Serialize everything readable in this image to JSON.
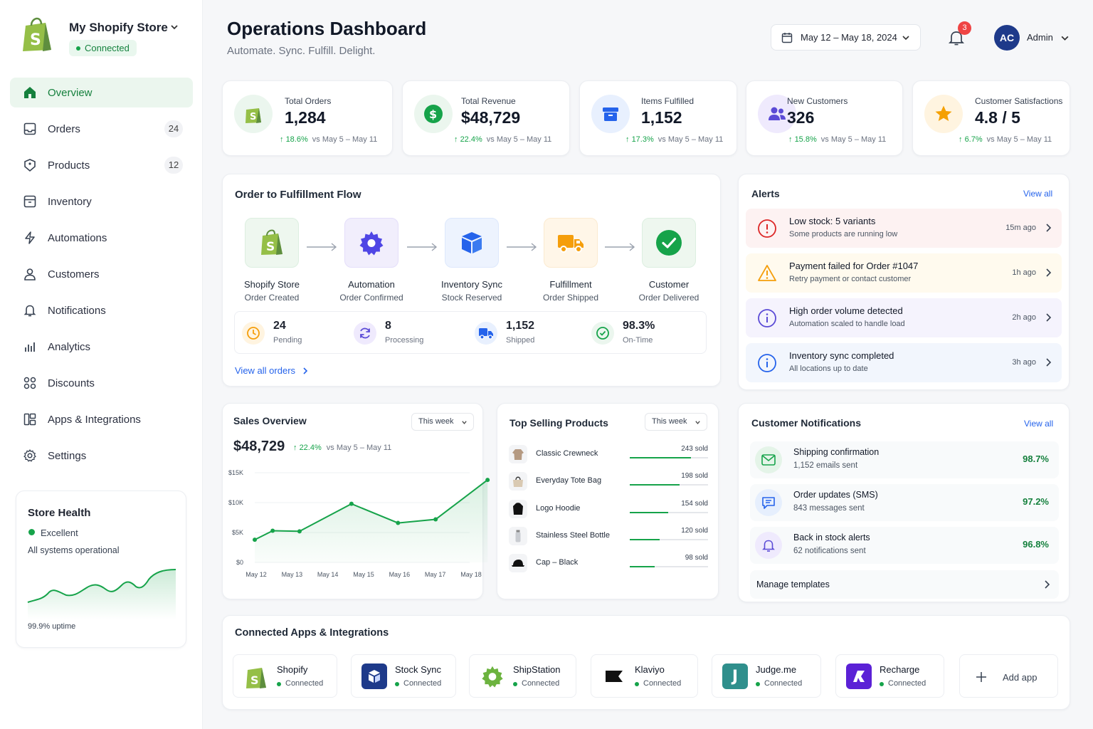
{
  "colors": {
    "accent": "#16a34a",
    "brand_green": "#95bf47",
    "link": "#2563eb",
    "alert_red": "#ef4444"
  },
  "store": {
    "name": "My Shopify Store",
    "status": "Connected"
  },
  "sidebar": {
    "items": [
      {
        "label": "Overview",
        "icon": "home-icon",
        "active": true
      },
      {
        "label": "Orders",
        "icon": "orders-icon",
        "badge": "24"
      },
      {
        "label": "Products",
        "icon": "tag-icon",
        "badge": "12"
      },
      {
        "label": "Inventory",
        "icon": "box-icon"
      },
      {
        "label": "Automations",
        "icon": "lightning-icon"
      },
      {
        "label": "Customers",
        "icon": "user-icon"
      },
      {
        "label": "Notifications",
        "icon": "bell-icon"
      },
      {
        "label": "Analytics",
        "icon": "bar-chart-icon"
      },
      {
        "label": "Discounts",
        "icon": "discount-icon"
      },
      {
        "label": "Apps & Integrations",
        "icon": "apps-icon"
      },
      {
        "label": "Settings",
        "icon": "gear-icon"
      }
    ]
  },
  "store_health": {
    "title": "Store Health",
    "status": "Excellent",
    "subtitle": "All systems operational",
    "uptime": "99.9% uptime"
  },
  "header": {
    "title": "Operations Dashboard",
    "subtitle": "Automate. Sync. Fulfill. Delight.",
    "date_range": "May 12 – May 18, 2024",
    "notification_count": "3",
    "avatar_initials": "AC",
    "user_label": "Admin"
  },
  "kpis": [
    {
      "label": "Total Orders",
      "value": "1,284",
      "change": "18.6%",
      "compare": "vs May 5 – May 11"
    },
    {
      "label": "Total Revenue",
      "value": "$48,729",
      "change": "22.4%",
      "compare": "vs May 5 – May 11"
    },
    {
      "label": "Items Fulfilled",
      "value": "1,152",
      "change": "17.3%",
      "compare": "vs May 5 – May 11"
    },
    {
      "label": "New Customers",
      "value": "326",
      "change": "15.8%",
      "compare": "vs May 5 – May 11"
    },
    {
      "label": "Customer Satisfactions",
      "value": "4.8 / 5",
      "change": "6.7%",
      "compare": "vs May 5 – May 11"
    }
  ],
  "flow": {
    "title": "Order to Fulfillment Flow",
    "steps": [
      {
        "name": "Shopify Store",
        "sub": "Order Created"
      },
      {
        "name": "Automation",
        "sub": "Order Confirmed"
      },
      {
        "name": "Inventory Sync",
        "sub": "Stock Reserved"
      },
      {
        "name": "Fulfillment",
        "sub": "Order Shipped"
      },
      {
        "name": "Customer",
        "sub": "Order Delivered"
      }
    ],
    "stats": [
      {
        "value": "24",
        "label": "Pending"
      },
      {
        "value": "8",
        "label": "Processing"
      },
      {
        "value": "1,152",
        "label": "Shipped"
      },
      {
        "value": "98.3%",
        "label": "On-Time"
      }
    ],
    "view_all": "View all orders"
  },
  "alerts": {
    "title": "Alerts",
    "view_all": "View all",
    "items": [
      {
        "title": "Low stock: 5 variants",
        "sub": "Some products are running low",
        "time": "15m ago",
        "level": "error"
      },
      {
        "title": "Payment failed for Order #1047",
        "sub": "Retry payment or contact customer",
        "time": "1h ago",
        "level": "warning"
      },
      {
        "title": "High order volume detected",
        "sub": "Automation scaled to handle load",
        "time": "2h ago",
        "level": "info-purple"
      },
      {
        "title": "Inventory sync completed",
        "sub": "All locations up to date",
        "time": "3h ago",
        "level": "info-blue"
      }
    ]
  },
  "sales": {
    "title": "Sales Overview",
    "period": "This week",
    "total": "$48,729",
    "change": "22.4%",
    "compare": "vs May 5 – May 11"
  },
  "chart_data": {
    "type": "area",
    "categories": [
      "May 12",
      "May 13",
      "May 14",
      "May 15",
      "May 16",
      "May 17",
      "May 18"
    ],
    "x": [
      0,
      0.5,
      1.25,
      2.7,
      4.0,
      5.05,
      6.5
    ],
    "values": [
      3800,
      5300,
      5200,
      9800,
      6600,
      7200,
      13800
    ],
    "yticks": [
      "$0",
      "$5K",
      "$10K",
      "$15K"
    ],
    "ylim": [
      0,
      15000
    ],
    "color": "#16a34a"
  },
  "top_products": {
    "title": "Top Selling Products",
    "period": "This week",
    "max_sold": 243,
    "items": [
      {
        "name": "Classic Crewneck",
        "sold_label": "243 sold",
        "sold": 243,
        "icon": "sweater-icon"
      },
      {
        "name": "Everyday Tote Bag",
        "sold_label": "198 sold",
        "sold": 198,
        "icon": "tote-bag-icon"
      },
      {
        "name": "Logo Hoodie",
        "sold_label": "154 sold",
        "sold": 154,
        "icon": "hoodie-icon"
      },
      {
        "name": "Stainless Steel Bottle",
        "sold_label": "120 sold",
        "sold": 120,
        "icon": "bottle-icon"
      },
      {
        "name": "Cap – Black",
        "sold_label": "98 sold",
        "sold": 98,
        "icon": "cap-icon"
      }
    ]
  },
  "customer_notifications": {
    "title": "Customer Notifications",
    "view_all": "View all",
    "items": [
      {
        "title": "Shipping confirmation",
        "sub": "1,152 emails sent",
        "pct": "98.7%",
        "icon": "mail-icon"
      },
      {
        "title": "Order updates (SMS)",
        "sub": "843 messages sent",
        "pct": "97.2%",
        "icon": "sms-icon"
      },
      {
        "title": "Back in stock alerts",
        "sub": "62 notifications sent",
        "pct": "96.8%",
        "icon": "bell-icon"
      }
    ],
    "manage": "Manage templates"
  },
  "integrations": {
    "title": "Connected Apps & Integrations",
    "apps": [
      {
        "name": "Shopify",
        "status": "Connected"
      },
      {
        "name": "Stock Sync",
        "status": "Connected"
      },
      {
        "name": "ShipStation",
        "status": "Connected"
      },
      {
        "name": "Klaviyo",
        "status": "Connected"
      },
      {
        "name": "Judge.me",
        "status": "Connected"
      },
      {
        "name": "Recharge",
        "status": "Connected"
      }
    ],
    "add_label": "Add app"
  }
}
